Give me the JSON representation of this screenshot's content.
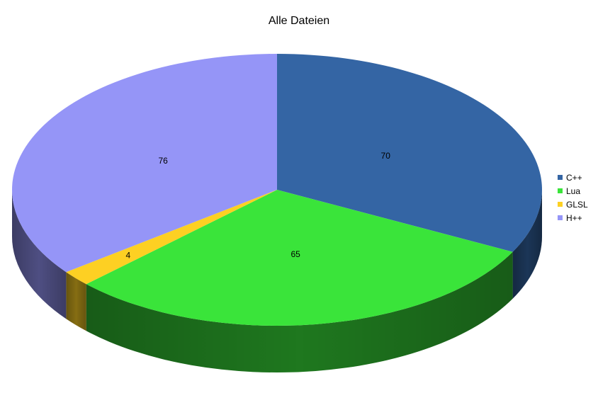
{
  "chart_data": {
    "type": "pie",
    "title": "Alle Dateien",
    "categories": [
      "C++",
      "Lua",
      "GLSL",
      "H++"
    ],
    "values": [
      70,
      65,
      4,
      76
    ],
    "colors": [
      "#3465a4",
      "#3ae43a",
      "#fdd023",
      "#9595f7"
    ],
    "data_labels": [
      "70",
      "65",
      "4",
      "76"
    ],
    "legend_position": "right",
    "style": "3d"
  }
}
